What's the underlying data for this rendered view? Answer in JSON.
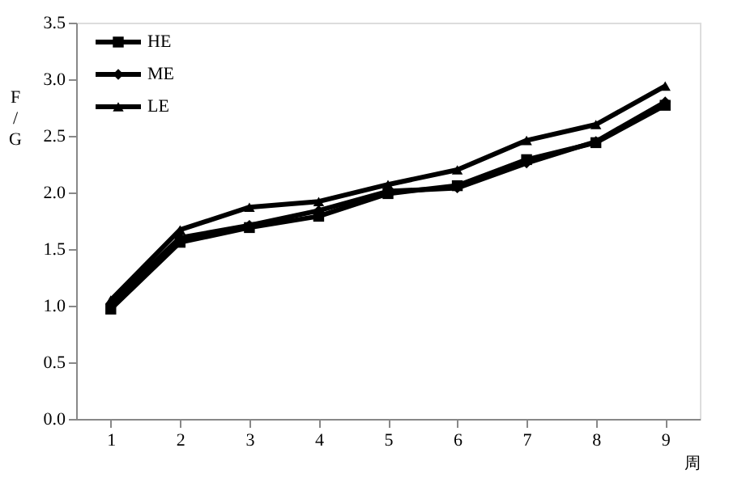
{
  "chart_data": {
    "type": "line",
    "xlabel": "周",
    "ylabel": "F/G",
    "categories": [
      "1",
      "2",
      "3",
      "4",
      "5",
      "6",
      "7",
      "8",
      "9"
    ],
    "series": [
      {
        "name": "HE",
        "color": "#000000",
        "marker": "square",
        "values": [
          0.97,
          1.56,
          1.69,
          1.79,
          1.99,
          2.06,
          2.29,
          2.44,
          2.77
        ]
      },
      {
        "name": "ME",
        "color": "#000000",
        "marker": "diamond",
        "values": [
          1.02,
          1.6,
          1.71,
          1.84,
          2.01,
          2.04,
          2.26,
          2.45,
          2.8
        ]
      },
      {
        "name": "LE",
        "color": "#000000",
        "marker": "triangle",
        "values": [
          1.05,
          1.67,
          1.87,
          1.92,
          2.07,
          2.2,
          2.46,
          2.6,
          2.94
        ]
      }
    ],
    "ylim": [
      0,
      3.5
    ],
    "yticks": [
      {
        "value": 0,
        "label": "0.0"
      },
      0.5,
      {
        "value": 1,
        "label": "1.0"
      },
      1.5,
      {
        "value": 2,
        "label": "2.0"
      },
      2.5,
      {
        "value": 3,
        "label": "3.0"
      },
      3.5
    ],
    "grid": false,
    "legend": "top left",
    "line_style": "solid"
  }
}
